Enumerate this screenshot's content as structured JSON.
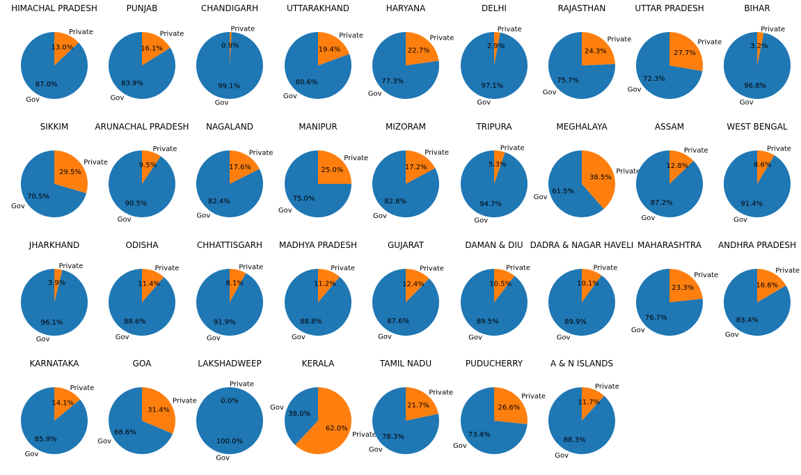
{
  "colors": {
    "gov": "#1f77b4",
    "private": "#ff7f0e"
  },
  "chart_data": [
    {
      "type": "pie",
      "title": "HIMACHAL PRADESH",
      "labels": [
        "Gov",
        "Private"
      ],
      "values": [
        87.0,
        13.0
      ],
      "pct_labels": [
        "87.0%",
        "13.0%"
      ]
    },
    {
      "type": "pie",
      "title": "PUNJAB",
      "labels": [
        "Gov",
        "Private"
      ],
      "values": [
        83.9,
        16.1
      ],
      "pct_labels": [
        "83.9%",
        "16.1%"
      ]
    },
    {
      "type": "pie",
      "title": "CHANDIGARH",
      "labels": [
        "Gov",
        "Private"
      ],
      "values": [
        99.1,
        0.9
      ],
      "pct_labels": [
        "99.1%",
        "0.9%"
      ]
    },
    {
      "type": "pie",
      "title": "UTTARAKHAND",
      "labels": [
        "Gov",
        "Private"
      ],
      "values": [
        80.6,
        19.4
      ],
      "pct_labels": [
        "80.6%",
        "19.4%"
      ]
    },
    {
      "type": "pie",
      "title": "HARYANA",
      "labels": [
        "Gov",
        "Private"
      ],
      "values": [
        77.3,
        22.7
      ],
      "pct_labels": [
        "77.3%",
        "22.7%"
      ]
    },
    {
      "type": "pie",
      "title": "DELHI",
      "labels": [
        "Gov",
        "Private"
      ],
      "values": [
        97.1,
        2.9
      ],
      "pct_labels": [
        "97.1%",
        "2.9%"
      ]
    },
    {
      "type": "pie",
      "title": "RAJASTHAN",
      "labels": [
        "Gov",
        "Private"
      ],
      "values": [
        75.7,
        24.3
      ],
      "pct_labels": [
        "75.7%",
        "24.3%"
      ]
    },
    {
      "type": "pie",
      "title": "UTTAR PRADESH",
      "labels": [
        "Gov",
        "Private"
      ],
      "values": [
        72.3,
        27.7
      ],
      "pct_labels": [
        "72.3%",
        "27.7%"
      ]
    },
    {
      "type": "pie",
      "title": "BIHAR",
      "labels": [
        "Gov",
        "Private"
      ],
      "values": [
        96.8,
        3.2
      ],
      "pct_labels": [
        "96.8%",
        "3.2%"
      ]
    },
    {
      "type": "pie",
      "title": "SIKKIM",
      "labels": [
        "Gov",
        "Private"
      ],
      "values": [
        70.5,
        29.5
      ],
      "pct_labels": [
        "70.5%",
        "29.5%"
      ]
    },
    {
      "type": "pie",
      "title": "ARUNACHAL PRADESH",
      "labels": [
        "Gov",
        "Private"
      ],
      "values": [
        90.5,
        9.5
      ],
      "pct_labels": [
        "90.5%",
        "9.5%"
      ]
    },
    {
      "type": "pie",
      "title": "NAGALAND",
      "labels": [
        "Gov",
        "Private"
      ],
      "values": [
        82.4,
        17.6
      ],
      "pct_labels": [
        "82.4%",
        "17.6%"
      ]
    },
    {
      "type": "pie",
      "title": "MANIPUR",
      "labels": [
        "Gov",
        "Private"
      ],
      "values": [
        75.0,
        25.0
      ],
      "pct_labels": [
        "75.0%",
        "25.0%"
      ]
    },
    {
      "type": "pie",
      "title": "MIZORAM",
      "labels": [
        "Gov",
        "Private"
      ],
      "values": [
        82.8,
        17.2
      ],
      "pct_labels": [
        "82.8%",
        "17.2%"
      ]
    },
    {
      "type": "pie",
      "title": "TRIPURA",
      "labels": [
        "Gov",
        "Private"
      ],
      "values": [
        94.7,
        5.3
      ],
      "pct_labels": [
        "94.7%",
        "5.3%"
      ]
    },
    {
      "type": "pie",
      "title": "MEGHALAYA",
      "labels": [
        "Gov",
        "Private"
      ],
      "values": [
        61.5,
        38.5
      ],
      "pct_labels": [
        "61.5%",
        "38.5%"
      ]
    },
    {
      "type": "pie",
      "title": "ASSAM",
      "labels": [
        "Gov",
        "Private"
      ],
      "values": [
        87.2,
        12.8
      ],
      "pct_labels": [
        "87.2%",
        "12.8%"
      ]
    },
    {
      "type": "pie",
      "title": "WEST BENGAL",
      "labels": [
        "Gov",
        "Private"
      ],
      "values": [
        91.4,
        8.6
      ],
      "pct_labels": [
        "91.4%",
        "8.6%"
      ]
    },
    {
      "type": "pie",
      "title": "JHARKHAND",
      "labels": [
        "Gov",
        "Private"
      ],
      "values": [
        96.1,
        3.9
      ],
      "pct_labels": [
        "96.1%",
        "3.9%"
      ]
    },
    {
      "type": "pie",
      "title": "ODISHA",
      "labels": [
        "Gov",
        "Private"
      ],
      "values": [
        88.6,
        11.4
      ],
      "pct_labels": [
        "88.6%",
        "11.4%"
      ]
    },
    {
      "type": "pie",
      "title": "CHHATTISGARH",
      "labels": [
        "Gov",
        "Private"
      ],
      "values": [
        91.9,
        8.1
      ],
      "pct_labels": [
        "91.9%",
        "8.1%"
      ]
    },
    {
      "type": "pie",
      "title": "MADHYA PRADESH",
      "labels": [
        "Gov",
        "Private"
      ],
      "values": [
        88.8,
        11.2
      ],
      "pct_labels": [
        "88.8%",
        "11.2%"
      ]
    },
    {
      "type": "pie",
      "title": "GUJARAT",
      "labels": [
        "Gov",
        "Private"
      ],
      "values": [
        87.6,
        12.4
      ],
      "pct_labels": [
        "87.6%",
        "12.4%"
      ]
    },
    {
      "type": "pie",
      "title": "DAMAN & DIU",
      "labels": [
        "Gov",
        "Private"
      ],
      "values": [
        89.5,
        10.5
      ],
      "pct_labels": [
        "89.5%",
        "10.5%"
      ]
    },
    {
      "type": "pie",
      "title": "DADRA & NAGAR HAVELI",
      "labels": [
        "Gov",
        "Private"
      ],
      "values": [
        89.9,
        10.1
      ],
      "pct_labels": [
        "89.9%",
        "10.1%"
      ]
    },
    {
      "type": "pie",
      "title": "MAHARASHTRA",
      "labels": [
        "Gov",
        "Private"
      ],
      "values": [
        76.7,
        23.3
      ],
      "pct_labels": [
        "76.7%",
        "23.3%"
      ]
    },
    {
      "type": "pie",
      "title": "ANDHRA PRADESH",
      "labels": [
        "Gov",
        "Private"
      ],
      "values": [
        83.4,
        16.6
      ],
      "pct_labels": [
        "83.4%",
        "16.6%"
      ]
    },
    {
      "type": "pie",
      "title": "KARNATAKA",
      "labels": [
        "Gov",
        "Private"
      ],
      "values": [
        85.9,
        14.1
      ],
      "pct_labels": [
        "85.9%",
        "14.1%"
      ]
    },
    {
      "type": "pie",
      "title": "GOA",
      "labels": [
        "Gov",
        "Private"
      ],
      "values": [
        68.6,
        31.4
      ],
      "pct_labels": [
        "68.6%",
        "31.4%"
      ]
    },
    {
      "type": "pie",
      "title": "LAKSHADWEEP",
      "labels": [
        "Gov",
        "Private"
      ],
      "values": [
        100.0,
        0.0
      ],
      "pct_labels": [
        "100.0%",
        "0.0%"
      ]
    },
    {
      "type": "pie",
      "title": "KERALA",
      "labels": [
        "Gov",
        "Private"
      ],
      "values": [
        38.0,
        62.0
      ],
      "pct_labels": [
        "38.0%",
        "62.0%"
      ]
    },
    {
      "type": "pie",
      "title": "TAMIL NADU",
      "labels": [
        "Gov",
        "Private"
      ],
      "values": [
        78.3,
        21.7
      ],
      "pct_labels": [
        "78.3%",
        "21.7%"
      ]
    },
    {
      "type": "pie",
      "title": "PUDUCHERRY",
      "labels": [
        "Gov",
        "Private"
      ],
      "values": [
        73.4,
        26.6
      ],
      "pct_labels": [
        "73.4%",
        "26.6%"
      ]
    },
    {
      "type": "pie",
      "title": "A & N ISLANDS",
      "labels": [
        "Gov",
        "Private"
      ],
      "values": [
        88.3,
        11.7
      ],
      "pct_labels": [
        "88.3%",
        "11.7%"
      ]
    }
  ]
}
